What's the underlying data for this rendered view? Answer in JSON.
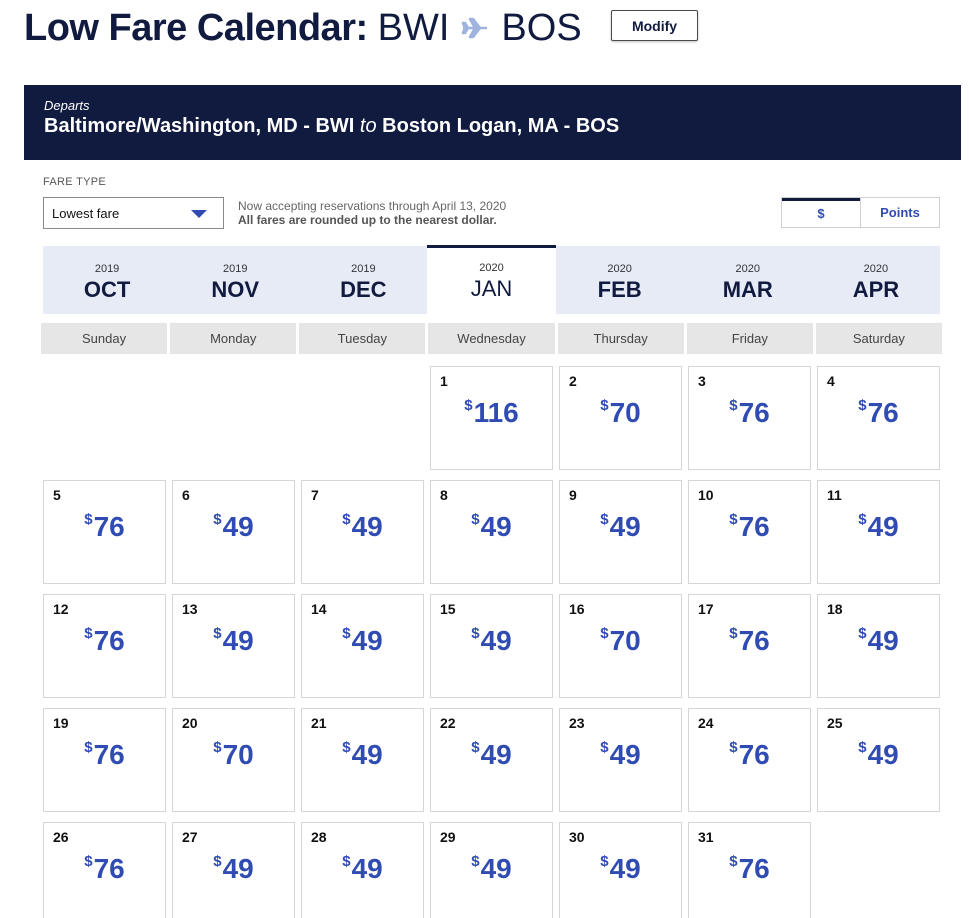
{
  "header": {
    "title": "Low Fare Calendar:",
    "origin": "BWI",
    "destination": "BOS",
    "modify_label": "Modify",
    "plane_icon": "plane-icon"
  },
  "banner": {
    "departs_label": "Departs",
    "origin_name": "Baltimore/Washington, MD - BWI",
    "to_word": "to",
    "destination_name": "Boston Logan, MA - BOS"
  },
  "fare": {
    "label": "FARE TYPE",
    "selected": "Lowest fare",
    "notice_line1": "Now accepting reservations through April 13, 2020",
    "notice_line2": "All fares are rounded up to the nearest dollar."
  },
  "toggle": {
    "dollar": "$",
    "points": "Points",
    "active": "dollar"
  },
  "months": [
    {
      "year": "2019",
      "name": "OCT"
    },
    {
      "year": "2019",
      "name": "NOV"
    },
    {
      "year": "2019",
      "name": "DEC"
    },
    {
      "year": "2020",
      "name": "JAN",
      "active": true
    },
    {
      "year": "2020",
      "name": "FEB"
    },
    {
      "year": "2020",
      "name": "MAR"
    },
    {
      "year": "2020",
      "name": "APR"
    }
  ],
  "weekdays": [
    "Sunday",
    "Monday",
    "Tuesday",
    "Wednesday",
    "Thursday",
    "Friday",
    "Saturday"
  ],
  "calendar": {
    "currency_symbol": "$",
    "leading_blanks": 3,
    "days": [
      {
        "day": "1",
        "price": "116"
      },
      {
        "day": "2",
        "price": "70"
      },
      {
        "day": "3",
        "price": "76"
      },
      {
        "day": "4",
        "price": "76"
      },
      {
        "day": "5",
        "price": "76"
      },
      {
        "day": "6",
        "price": "49"
      },
      {
        "day": "7",
        "price": "49"
      },
      {
        "day": "8",
        "price": "49"
      },
      {
        "day": "9",
        "price": "49"
      },
      {
        "day": "10",
        "price": "76"
      },
      {
        "day": "11",
        "price": "49"
      },
      {
        "day": "12",
        "price": "76"
      },
      {
        "day": "13",
        "price": "49"
      },
      {
        "day": "14",
        "price": "49"
      },
      {
        "day": "15",
        "price": "49"
      },
      {
        "day": "16",
        "price": "70"
      },
      {
        "day": "17",
        "price": "76"
      },
      {
        "day": "18",
        "price": "49"
      },
      {
        "day": "19",
        "price": "76"
      },
      {
        "day": "20",
        "price": "70"
      },
      {
        "day": "21",
        "price": "49"
      },
      {
        "day": "22",
        "price": "49"
      },
      {
        "day": "23",
        "price": "49"
      },
      {
        "day": "24",
        "price": "76"
      },
      {
        "day": "25",
        "price": "49"
      },
      {
        "day": "26",
        "price": "76"
      },
      {
        "day": "27",
        "price": "49"
      },
      {
        "day": "28",
        "price": "49"
      },
      {
        "day": "29",
        "price": "49"
      },
      {
        "day": "30",
        "price": "49"
      },
      {
        "day": "31",
        "price": "76"
      }
    ]
  },
  "colors": {
    "navy": "#111b40",
    "price_blue": "#304cb2",
    "month_bar": "#e6ebf6",
    "plane": "#9fb3de"
  }
}
